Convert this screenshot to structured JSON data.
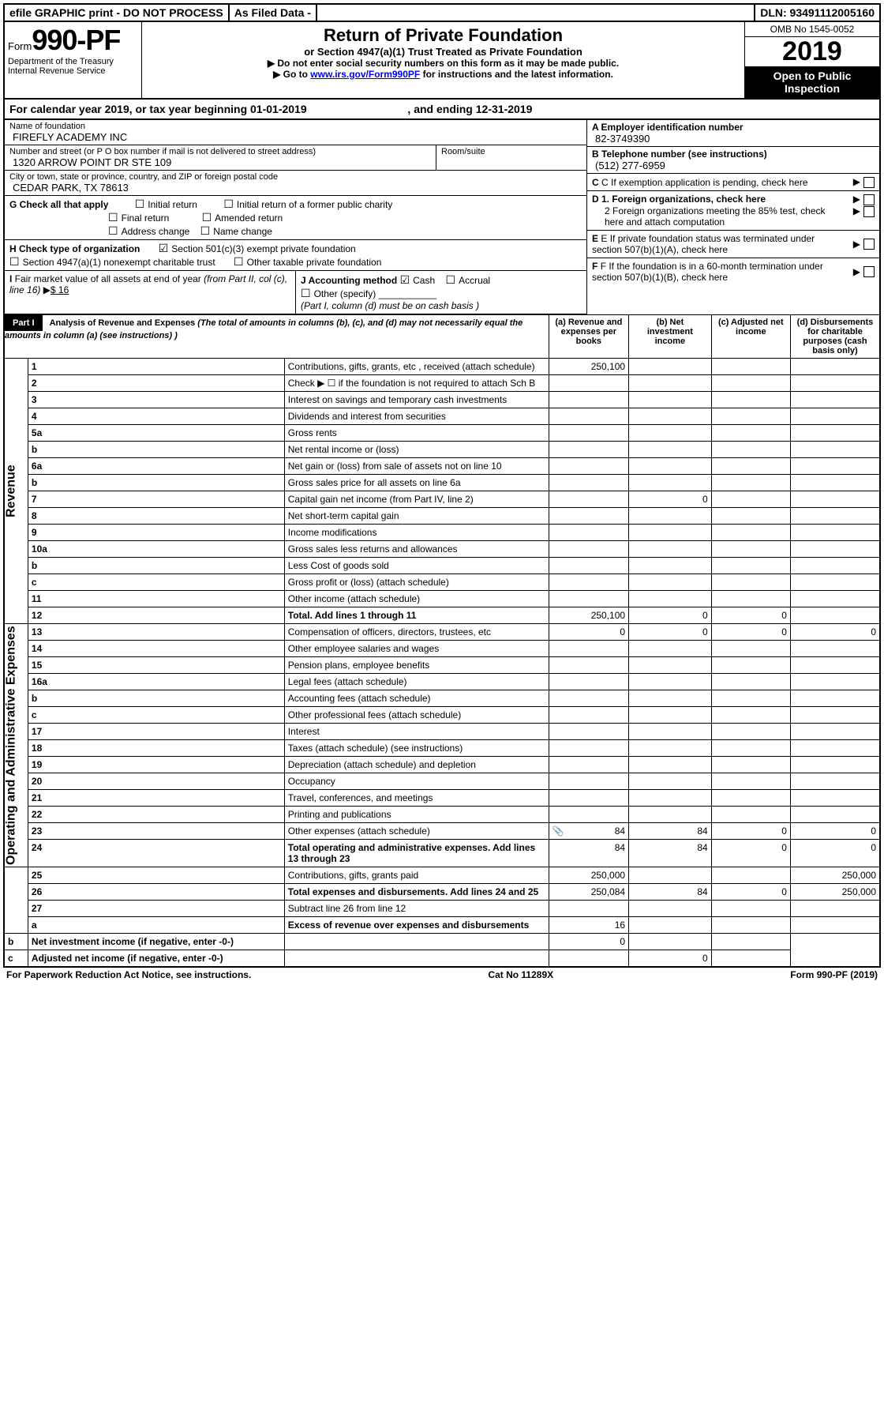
{
  "topbar": {
    "efile": "efile GRAPHIC print - DO NOT PROCESS",
    "asfiled": "As Filed Data -",
    "dln_label": "DLN:",
    "dln": "93491112005160"
  },
  "header": {
    "form_prefix": "Form",
    "form_no": "990-PF",
    "dept": "Department of the Treasury",
    "irs": "Internal Revenue Service",
    "title": "Return of Private Foundation",
    "subtitle": "or Section 4947(a)(1) Trust Treated as Private Foundation",
    "warn1": "Do not enter social security numbers on this form as it may be made public.",
    "warn2_pre": "Go to ",
    "warn2_link": "www.irs.gov/Form990PF",
    "warn2_post": " for instructions and the latest information.",
    "omb": "OMB No 1545-0052",
    "year": "2019",
    "open": "Open to Public Inspection"
  },
  "calendar": {
    "pre": "For calendar year 2019, or tax year beginning ",
    "begin": "01-01-2019",
    "mid": ", and ending ",
    "end": "12-31-2019"
  },
  "name": {
    "lbl": "Name of foundation",
    "val": "FIREFLY ACADEMY INC"
  },
  "addr": {
    "lbl": "Number and street (or P O  box number if mail is not delivered to street address)",
    "val": "1320 ARROW POINT DR STE 109",
    "room_lbl": "Room/suite"
  },
  "city": {
    "lbl": "City or town, state or province, country, and ZIP or foreign postal code",
    "val": "CEDAR PARK, TX  78613"
  },
  "ein": {
    "lbl": "A Employer identification number",
    "val": "82-3749390"
  },
  "tel": {
    "lbl": "B Telephone number (see instructions)",
    "val": "(512) 277-6959"
  },
  "secC": "C If exemption application is pending, check here",
  "secD1": "D 1. Foreign organizations, check here",
  "secD2": "2 Foreign organizations meeting the 85% test, check here and attach computation",
  "secE": "E  If private foundation status was terminated under section 507(b)(1)(A), check here",
  "secF": "F  If the foundation is in a 60-month termination under section 507(b)(1)(B), check here",
  "G": {
    "lbl": "G Check all that apply",
    "opts": [
      "Initial return",
      "Initial return of a former public charity",
      "Final return",
      "Amended return",
      "Address change",
      "Name change"
    ]
  },
  "H": {
    "lbl": "H Check type of organization",
    "o1": "Section 501(c)(3) exempt private foundation",
    "o2": "Section 4947(a)(1) nonexempt charitable trust",
    "o3": "Other taxable private foundation"
  },
  "I": {
    "lbl": "I Fair market value of all assets at end of year (from Part II, col  (c), line 16)",
    "val": "$  16"
  },
  "J": {
    "lbl": "J Accounting method",
    "cash": "Cash",
    "accrual": "Accrual",
    "other": "Other (specify)",
    "note": "(Part I, column (d) must be on cash basis )"
  },
  "part1": {
    "hdr": "Part I",
    "title": "Analysis of Revenue and Expenses",
    "note": "(The total of amounts in columns (b), (c), and (d) may not necessarily equal the amounts in column (a) (see instructions) )",
    "col_a": "(a)  Revenue and expenses per books",
    "col_b": "(b) Net investment income",
    "col_c": "(c) Adjusted net income",
    "col_d": "(d) Disbursements for charitable purposes (cash basis only)",
    "vert_rev": "Revenue",
    "vert_exp": "Operating and Administrative Expenses"
  },
  "rows": [
    {
      "n": "1",
      "d": "Contributions, gifts, grants, etc , received (attach schedule)",
      "a": "250,100"
    },
    {
      "n": "2",
      "d": "Check ▶ ☐ if the foundation is not required to attach Sch  B"
    },
    {
      "n": "3",
      "d": "Interest on savings and temporary cash investments"
    },
    {
      "n": "4",
      "d": "Dividends and interest from securities"
    },
    {
      "n": "5a",
      "d": "Gross rents"
    },
    {
      "n": "b",
      "d": "Net rental income or (loss)"
    },
    {
      "n": "6a",
      "d": "Net gain or (loss) from sale of assets not on line 10"
    },
    {
      "n": "b",
      "d": "Gross sales price for all assets on line 6a"
    },
    {
      "n": "7",
      "d": "Capital gain net income (from Part IV, line 2)",
      "b": "0"
    },
    {
      "n": "8",
      "d": "Net short-term capital gain"
    },
    {
      "n": "9",
      "d": "Income modifications"
    },
    {
      "n": "10a",
      "d": "Gross sales less returns and allowances"
    },
    {
      "n": "b",
      "d": "Less  Cost of goods sold"
    },
    {
      "n": "c",
      "d": "Gross profit or (loss) (attach schedule)"
    },
    {
      "n": "11",
      "d": "Other income (attach schedule)"
    },
    {
      "n": "12",
      "d": "Total. Add lines 1 through 11",
      "a": "250,100",
      "b": "0",
      "c": "0",
      "bold": true
    },
    {
      "n": "13",
      "d": "Compensation of officers, directors, trustees, etc",
      "a": "0",
      "b": "0",
      "c": "0",
      "dd": "0"
    },
    {
      "n": "14",
      "d": "Other employee salaries and wages"
    },
    {
      "n": "15",
      "d": "Pension plans, employee benefits"
    },
    {
      "n": "16a",
      "d": "Legal fees (attach schedule)"
    },
    {
      "n": "b",
      "d": "Accounting fees (attach schedule)"
    },
    {
      "n": "c",
      "d": "Other professional fees (attach schedule)"
    },
    {
      "n": "17",
      "d": "Interest"
    },
    {
      "n": "18",
      "d": "Taxes (attach schedule) (see instructions)"
    },
    {
      "n": "19",
      "d": "Depreciation (attach schedule) and depletion"
    },
    {
      "n": "20",
      "d": "Occupancy"
    },
    {
      "n": "21",
      "d": "Travel, conferences, and meetings"
    },
    {
      "n": "22",
      "d": "Printing and publications"
    },
    {
      "n": "23",
      "d": "Other expenses (attach schedule)",
      "a": "84",
      "b": "84",
      "c": "0",
      "dd": "0",
      "icon": true
    },
    {
      "n": "24",
      "d": "Total operating and administrative expenses. Add lines 13 through 23",
      "a": "84",
      "b": "84",
      "c": "0",
      "dd": "0",
      "bold": true
    },
    {
      "n": "25",
      "d": "Contributions, gifts, grants paid",
      "a": "250,000",
      "dd": "250,000"
    },
    {
      "n": "26",
      "d": "Total expenses and disbursements. Add lines 24 and 25",
      "a": "250,084",
      "b": "84",
      "c": "0",
      "dd": "250,000",
      "bold": true
    },
    {
      "n": "27",
      "d": "Subtract line 26 from line 12"
    },
    {
      "n": "a",
      "d": "Excess of revenue over expenses and disbursements",
      "a": "16",
      "bold": true
    },
    {
      "n": "b",
      "d": "Net investment income (if negative, enter -0-)",
      "b": "0",
      "bold": true
    },
    {
      "n": "c",
      "d": "Adjusted net income (if negative, enter -0-)",
      "c": "0",
      "bold": true
    }
  ],
  "footer": {
    "left": "For Paperwork Reduction Act Notice, see instructions.",
    "mid": "Cat  No  11289X",
    "right_pre": "Form ",
    "right_form": "990-PF",
    "right_post": " (2019)"
  }
}
